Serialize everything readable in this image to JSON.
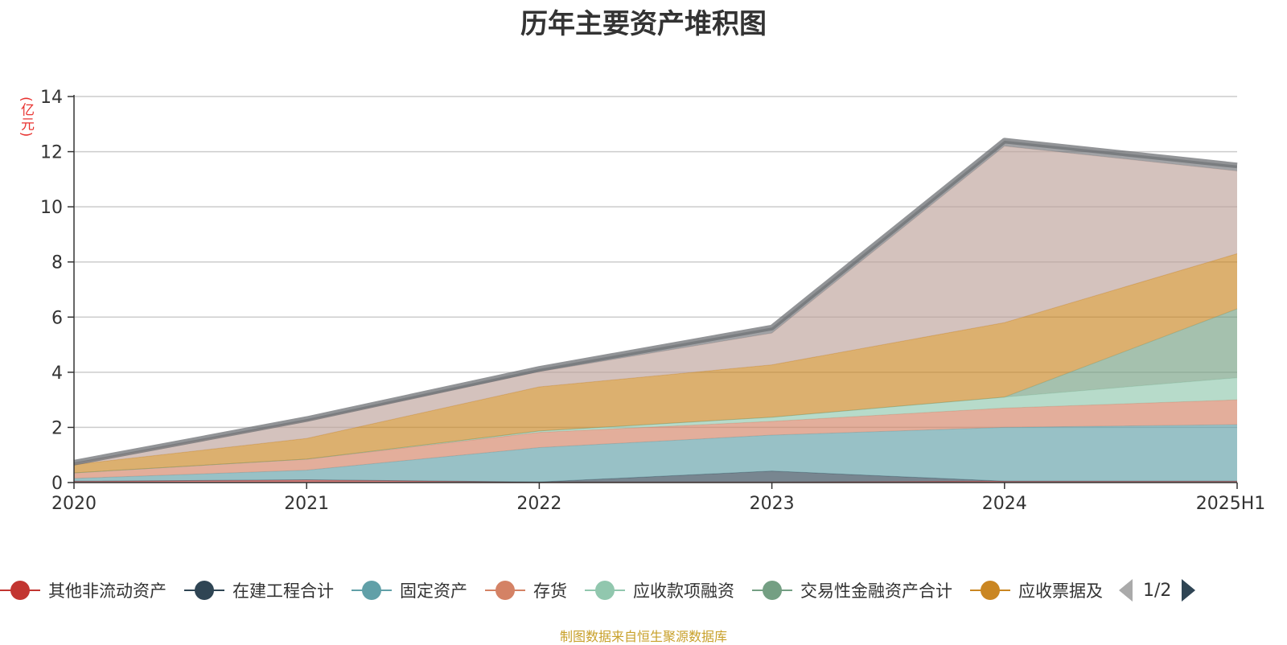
{
  "title": "历年主要资产堆积图",
  "source_note": "制图数据来自恒生聚源数据库",
  "legend_pager": "1/2",
  "chart_data": {
    "type": "area",
    "stacked": true,
    "title": "历年主要资产堆积图",
    "ylabel": "(亿元)",
    "xlabel": "",
    "categories": [
      "2020",
      "2021",
      "2022",
      "2023",
      "2024",
      "2025H1"
    ],
    "ylim": [
      0,
      14
    ],
    "yticks": [
      0,
      2,
      4,
      6,
      8,
      10,
      12,
      14
    ],
    "grid": true,
    "legend_position": "bottom",
    "series": [
      {
        "name": "其他非流动资产",
        "color": "#c23531",
        "values": [
          0.05,
          0.1,
          0.02,
          0.02,
          0.05,
          0.05
        ]
      },
      {
        "name": "在建工程合计",
        "color": "#2f4554",
        "values": [
          0.0,
          0.0,
          0.0,
          0.4,
          0.0,
          0.0
        ]
      },
      {
        "name": "固定资产",
        "color": "#61a0a8",
        "values": [
          0.1,
          0.35,
          1.25,
          1.3,
          1.95,
          2.05
        ]
      },
      {
        "name": "存货",
        "color": "#d48265",
        "values": [
          0.2,
          0.4,
          0.55,
          0.5,
          0.7,
          0.9
        ]
      },
      {
        "name": "应收款项融资",
        "color": "#91c7ae",
        "values": [
          0.0,
          0.0,
          0.05,
          0.15,
          0.4,
          0.8
        ]
      },
      {
        "name": "交易性金融资产合计",
        "color": "#749f83",
        "values": [
          0.0,
          0.0,
          0.0,
          0.0,
          0.0,
          2.5
        ]
      },
      {
        "name": "应收票据及",
        "color": "#ca8622",
        "values": [
          0.3,
          0.75,
          1.6,
          1.9,
          2.7,
          2.0
        ]
      },
      {
        "name": "",
        "color": "#bda29a",
        "values": [
          0.05,
          0.65,
          0.55,
          1.15,
          6.4,
          3.0
        ]
      },
      {
        "name": "",
        "color": "#6e7074",
        "values": [
          0.02,
          0.05,
          0.1,
          0.2,
          0.2,
          0.2
        ]
      }
    ]
  }
}
